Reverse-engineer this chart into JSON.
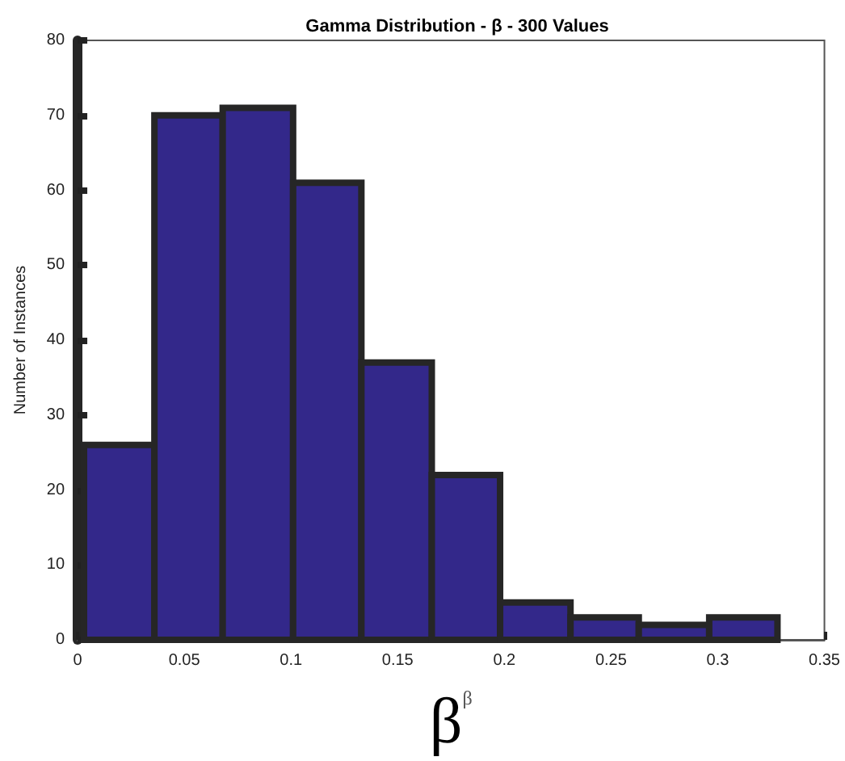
{
  "chart_data": {
    "type": "histogram",
    "title": "Gamma Distribution - β - 300 Values",
    "xlabel": "β$^{β}$",
    "ylabel": "Number of Instances",
    "bins": [
      0.003,
      0.036,
      0.068,
      0.101,
      0.133,
      0.166,
      0.198,
      0.231,
      0.263,
      0.296,
      0.328
    ],
    "values": [
      26,
      70,
      71,
      61,
      37,
      22,
      5,
      3,
      2,
      3
    ],
    "color": "#33288a",
    "xlim": [
      0,
      0.35
    ],
    "xticks": [
      0,
      0.05,
      0.1,
      0.15,
      0.2,
      0.25,
      0.3,
      0.35
    ],
    "ylim": [
      0,
      80
    ],
    "yticks": [
      0,
      10,
      20,
      30,
      40,
      50,
      60,
      70,
      80
    ],
    "grid": false
  }
}
